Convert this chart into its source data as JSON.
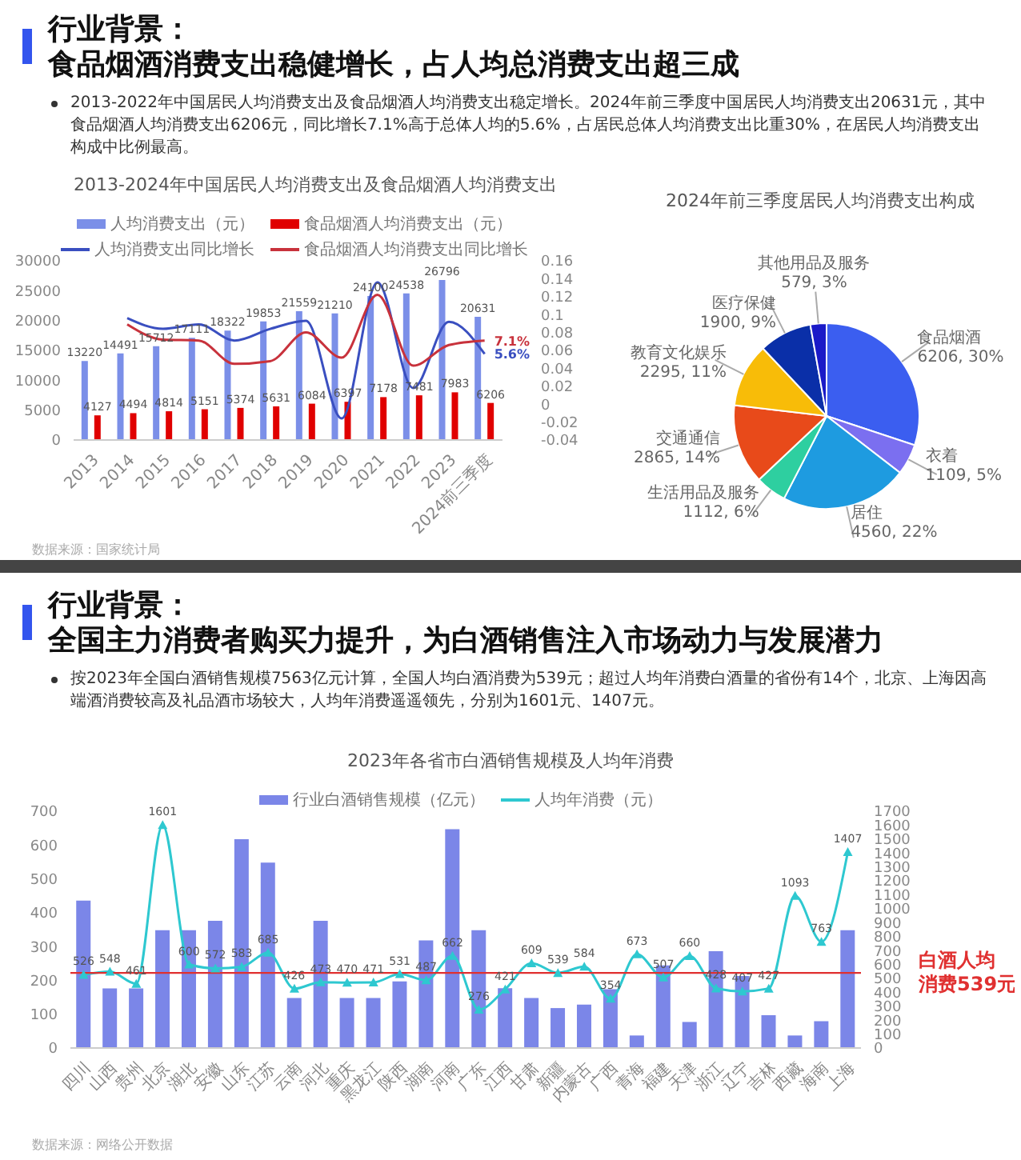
{
  "chart_data": [
    {
      "type": "bar",
      "title": "2013-2024年中国居民人均消费支出及食品烟酒人均消费支出",
      "categories": [
        "2013",
        "2014",
        "2015",
        "2016",
        "2017",
        "2018",
        "2019",
        "2020",
        "2021",
        "2022",
        "2023",
        "2024前三季度"
      ],
      "series": [
        {
          "name": "人均消费支出（元）",
          "color": "#7b8fe8",
          "values": [
            13220,
            14491,
            15712,
            17111,
            18322,
            19853,
            21559,
            21210,
            24100,
            24538,
            26796,
            20631
          ],
          "value_labels": [
            "13220",
            "14491",
            "15712",
            "17111",
            "18322",
            "19853",
            "21559",
            "21210",
            "24100",
            "24538",
            "26796",
            "20631"
          ]
        },
        {
          "name": "食品烟酒人均消费支出（元）",
          "color": "#e00000",
          "values": [
            4127,
            4494,
            4814,
            5151,
            5374,
            5631,
            6084,
            6397,
            7178,
            7481,
            7983,
            6206
          ],
          "value_labels": [
            "4127",
            "4494",
            "4814",
            "5151",
            "5374",
            "5631",
            "6084",
            "6397",
            "7178",
            "7481",
            "7983",
            "6206"
          ]
        },
        {
          "name": "人均消费支出同比增长",
          "type": "line",
          "axis": "y2",
          "color": "#3a4fc0",
          "values": [
            null,
            0.096,
            0.084,
            0.089,
            0.071,
            0.084,
            0.093,
            -0.016,
            0.136,
            0.018,
            0.092,
            0.056
          ],
          "value_labels": [
            null,
            null,
            null,
            null,
            null,
            null,
            null,
            null,
            null,
            null,
            null,
            "5.6%"
          ]
        },
        {
          "name": "食品烟酒人均消费支出同比增长",
          "type": "line",
          "axis": "y2",
          "color": "#c8323c",
          "values": [
            null,
            0.089,
            0.072,
            0.071,
            0.045,
            0.048,
            0.08,
            0.052,
            0.122,
            0.043,
            0.066,
            0.071
          ],
          "value_labels": [
            null,
            null,
            null,
            null,
            null,
            null,
            null,
            null,
            null,
            null,
            null,
            "7.1%"
          ]
        }
      ],
      "ylim": [
        0,
        30000
      ],
      "yticks": [
        0,
        5000,
        10000,
        15000,
        20000,
        25000,
        30000
      ],
      "y2lim": [
        -0.04,
        0.16
      ],
      "y2ticks": [
        -0.04,
        -0.02,
        0,
        0.02,
        0.04,
        0.06,
        0.08,
        0.1,
        0.12,
        0.14,
        0.16
      ],
      "legend": "top",
      "marker": "none",
      "annotations": [
        "行业背景：",
        "食品烟酒消费支出稳健增长，占人均总消费支出超三成",
        "2013-2022年中国居民人均消费支出及食品烟酒人均消费支出稳定增长。2024年前三季度中国居民人均消费支出20631元，其中食品烟酒人均消费支出6206元，同比增长7.1%高于总体人均的5.6%，占居民总体人均消费支出比重30%，在居民人均消费支出构成中比例最高。",
        "数据来源：国家统计局"
      ]
    },
    {
      "type": "pie",
      "title": "2024年前三季度居民人均消费支出构成",
      "categories": [
        "食品烟酒",
        "衣着",
        "居住",
        "生活用品及服务",
        "交通通信",
        "教育文化娱乐",
        "医疗保健",
        "其他用品及服务"
      ],
      "values": [
        6206,
        1109,
        4560,
        1112,
        2865,
        2295,
        1900,
        579
      ],
      "colors": [
        "#3b5ef0",
        "#7b6ff0",
        "#1e9be0",
        "#2ecfa0",
        "#e84a1a",
        "#f8bc08",
        "#0a2fa8",
        "#1a1ac8"
      ],
      "value_labels": [
        "6206, 30%",
        "1109, 5%",
        "4560, 22%",
        "1112, 6%",
        "2865, 14%",
        "2295, 11%",
        "1900, 9%",
        "579, 3%"
      ]
    },
    {
      "type": "bar",
      "title": "2023年各省市白酒销售规模及人均年消费",
      "categories": [
        "四川",
        "山西",
        "贵州",
        "北京",
        "湖北",
        "安徽",
        "山东",
        "江苏",
        "云南",
        "河北",
        "重庆",
        "黑龙江",
        "陕西",
        "湖南",
        "河南",
        "广东",
        "江西",
        "甘肃",
        "新疆",
        "内蒙古",
        "广西",
        "青海",
        "福建",
        "天津",
        "浙江",
        "辽宁",
        "吉林",
        "西藏",
        "海南",
        "上海"
      ],
      "series": [
        {
          "name": "行业白酒销售规模（亿元）",
          "color": "#7b86e8",
          "values": [
            436,
            176,
            176,
            348,
            348,
            376,
            617,
            548,
            148,
            376,
            148,
            148,
            197,
            318,
            647,
            348,
            177,
            148,
            118,
            128,
            174,
            37,
            244,
            77,
            286,
            213,
            97,
            37,
            79,
            348
          ]
        },
        {
          "name": "人均年消费（元）",
          "type": "line",
          "axis": "y2",
          "color": "#2ec8d0",
          "marker": "triangle",
          "values": [
            526,
            548,
            461,
            1601,
            600,
            572,
            583,
            685,
            426,
            473,
            470,
            471,
            531,
            487,
            662,
            276,
            421,
            609,
            539,
            584,
            354,
            673,
            507,
            660,
            428,
            407,
            427,
            1093,
            763,
            1407
          ],
          "value_labels": [
            "526",
            "548",
            "461",
            "1601",
            "600",
            "572",
            "583",
            "685",
            "426",
            "473",
            "470",
            "471",
            "531",
            "487",
            "662",
            "276",
            "421",
            "609",
            "539",
            "584",
            "354",
            "673",
            "507",
            "660",
            "428",
            "407",
            "427",
            "1093",
            "763",
            "1407"
          ]
        }
      ],
      "ylim": [
        0,
        700
      ],
      "yticks": [
        0,
        100,
        200,
        300,
        400,
        500,
        600,
        700
      ],
      "y2lim": [
        0,
        1700
      ],
      "y2ticks": [
        0,
        100,
        200,
        300,
        400,
        500,
        600,
        700,
        800,
        900,
        1000,
        1100,
        1200,
        1300,
        1400,
        1500,
        1600,
        1700
      ],
      "legend": "top",
      "ref_lines": [
        {
          "axis": "y2",
          "value": 539,
          "label": "白酒人均消费539元",
          "color": "#e03030"
        }
      ],
      "annotations": [
        "行业背景：",
        "全国主力消费者购买力提升，为白酒销售注入市场动力与发展潜力",
        "按2023年全国白酒销售规模7563亿元计算，全国人均白酒消费为539元；超过人均年消费白酒量的省份有14个，北京、上海因高端酒消费较高及礼品酒市场较大，人均年消费遥遥领先，分别为1601元、1407元。",
        "数据来源：网络公开数据"
      ]
    }
  ]
}
